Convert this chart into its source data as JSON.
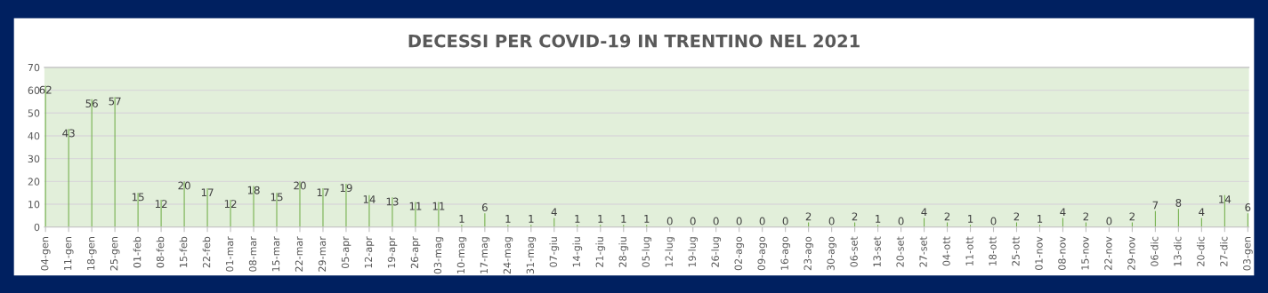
{
  "chart_data": {
    "type": "bar",
    "title": "DECESSI PER COVID-19 IN TRENTINO NEL 2021",
    "categories": [
      "04-gen",
      "11-gen",
      "18-gen",
      "25-gen",
      "01-feb",
      "08-feb",
      "15-feb",
      "22-feb",
      "01-mar",
      "08-mar",
      "15-mar",
      "22-mar",
      "29-mar",
      "05-apr",
      "12-apr",
      "19-apr",
      "26-apr",
      "03-mag",
      "10-mag",
      "17-mag",
      "24-mag",
      "31-mag",
      "07-giu",
      "14-giu",
      "21-giu",
      "28-giu",
      "05-lug",
      "12-lug",
      "19-lug",
      "26-lug",
      "02-ago",
      "09-ago",
      "16-ago",
      "23-ago",
      "30-ago",
      "06-set",
      "13-set",
      "20-set",
      "27-set",
      "04-ott",
      "11-ott",
      "18-ott",
      "25-ott",
      "01-nov",
      "08-nov",
      "15-nov",
      "22-nov",
      "29-nov",
      "06-dic",
      "13-dic",
      "20-dic",
      "27-dic",
      "03-gen"
    ],
    "values": [
      62,
      43,
      56,
      57,
      15,
      12,
      20,
      17,
      12,
      18,
      15,
      20,
      17,
      19,
      14,
      13,
      11,
      11,
      1,
      6,
      1,
      1,
      4,
      1,
      1,
      1,
      1,
      0,
      0,
      0,
      0,
      0,
      0,
      2,
      0,
      2,
      1,
      0,
      4,
      2,
      1,
      0,
      2,
      1,
      4,
      2,
      0,
      2,
      7,
      8,
      4,
      14,
      6
    ],
    "color": "#70ad47",
    "ylim": [
      0,
      70
    ],
    "yticks": [
      0,
      10,
      20,
      30,
      40,
      50,
      60,
      70
    ],
    "grid": "y",
    "data_labels": true
  }
}
